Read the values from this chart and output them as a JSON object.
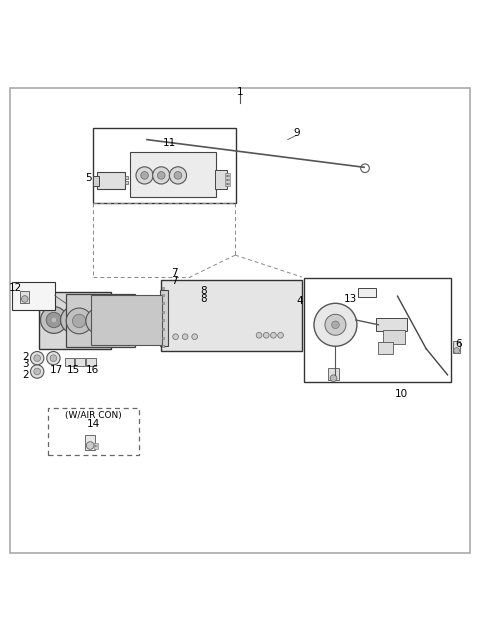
{
  "bg_color": "#ffffff",
  "border_color": "#aaaaaa",
  "fig_width": 4.8,
  "fig_height": 6.4,
  "dpi": 100
}
